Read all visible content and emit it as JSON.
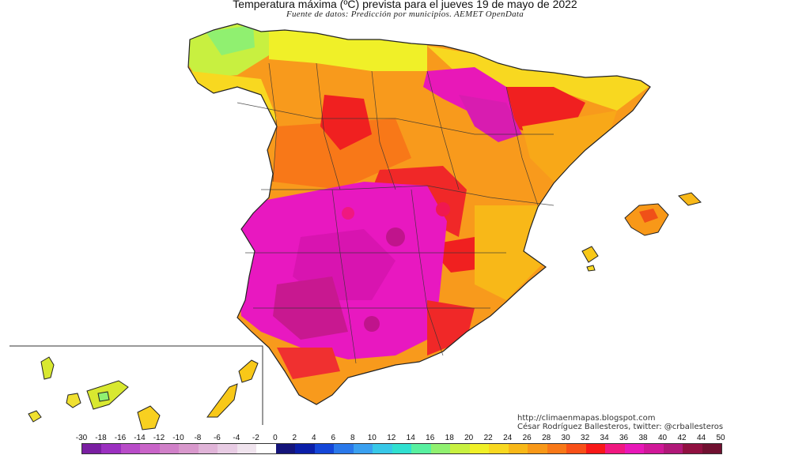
{
  "header": {
    "title": "Temperatura máxima (ºC) prevista para el jueves 19 de mayo de 2022",
    "subtitle": "Fuente de datos: Predicción por municipios. AEMET OpenData"
  },
  "credit": {
    "url": "http://climaenmapas.blogspot.com",
    "author": "César Rodríguez Ballesteros, twitter: @crballesteros"
  },
  "legend": {
    "ticks": [
      "-30",
      "-18",
      "-16",
      "-14",
      "-12",
      "-10",
      "-8",
      "-6",
      "-4",
      "-2",
      "0",
      "2",
      "4",
      "6",
      "8",
      "10",
      "12",
      "14",
      "16",
      "18",
      "20",
      "22",
      "24",
      "26",
      "28",
      "30",
      "32",
      "34",
      "36",
      "38",
      "40",
      "42",
      "44",
      "50"
    ],
    "colors": [
      "#7a1fa2",
      "#9b30c0",
      "#b84cc8",
      "#c964c8",
      "#d080c8",
      "#d898cc",
      "#e0b4d8",
      "#e8cce4",
      "#f0e4ee",
      "#ffffff",
      "#14147a",
      "#0a1ea8",
      "#1446d8",
      "#2a78ea",
      "#3aa0f0",
      "#38c8e8",
      "#30e0d0",
      "#58f0a0",
      "#90f070",
      "#c8f040",
      "#f0f028",
      "#f8d820",
      "#f8b818",
      "#f89818",
      "#f87818",
      "#f85018",
      "#f81818",
      "#f01880",
      "#e818b8",
      "#d01898",
      "#b01878",
      "#901040",
      "#701030"
    ]
  },
  "map": {
    "regions": [
      "Peninsula",
      "Baleares",
      "Canarias"
    ]
  }
}
